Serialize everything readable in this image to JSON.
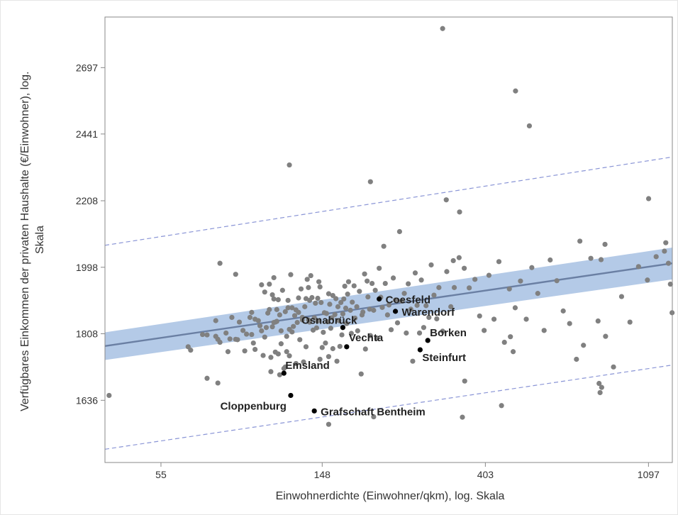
{
  "chart_data": {
    "type": "scatter",
    "xlabel": "Einwohnerdichte (Einwohner/qkm), log. Skala",
    "ylabel_lines": [
      "Verfügbares Einkommen der privaten Haushalte (€/Einwohner), log.",
      "Skala"
    ],
    "x_scale": "log",
    "y_scale": "log",
    "xlim": [
      39,
      1270
    ],
    "ylim": [
      1490,
      2910
    ],
    "x_ticks": [
      55,
      148,
      403,
      1097
    ],
    "y_ticks": [
      1636,
      1808,
      1998,
      2208,
      2441,
      2697
    ],
    "grid": false,
    "legend": "none",
    "colors": {
      "points": "#808080",
      "highlight": "#000000",
      "regression_line": "#6a7fa3",
      "confidence_band": "#a7c1e3",
      "prediction_limits": "#8a95d6",
      "frame": "#888888"
    },
    "regression": {
      "line": [
        [
          39,
          1775
        ],
        [
          1270,
          2010
        ]
      ],
      "ci_upper": [
        [
          39,
          1812
        ],
        [
          1270,
          2058
        ]
      ],
      "ci_lower": [
        [
          39,
          1738
        ],
        [
          1270,
          1962
        ]
      ],
      "pi_upper": [
        [
          39,
          2065
        ],
        [
          1270,
          2358
        ]
      ],
      "pi_lower": [
        [
          39,
          1520
        ],
        [
          1270,
          1725
        ]
      ]
    },
    "highlighted": [
      {
        "label": "Coesfeld",
        "x": 210,
        "y": 1905
      },
      {
        "label": "Warendorf",
        "x": 232,
        "y": 1870
      },
      {
        "label": "Osnabrück",
        "x": 168,
        "y": 1825
      },
      {
        "label": "Vechta",
        "x": 172,
        "y": 1773
      },
      {
        "label": "Borken",
        "x": 283,
        "y": 1790
      },
      {
        "label": "Steinfurt",
        "x": 270,
        "y": 1765
      },
      {
        "label": "Emsland",
        "x": 117,
        "y": 1704
      },
      {
        "label": "Cloppenburg",
        "x": 122,
        "y": 1648
      },
      {
        "label": "Grafschaft Bentheim",
        "x": 141,
        "y": 1610
      }
    ],
    "points": [
      [
        40,
        1648
      ],
      [
        65,
        1773
      ],
      [
        66,
        1764
      ],
      [
        71,
        1806
      ],
      [
        73,
        1805
      ],
      [
        73,
        1691
      ],
      [
        77,
        1844
      ],
      [
        77,
        1801
      ],
      [
        78,
        1793
      ],
      [
        78,
        1679
      ],
      [
        79,
        1785
      ],
      [
        79,
        2010
      ],
      [
        82,
        1810
      ],
      [
        83,
        1760
      ],
      [
        84,
        1794
      ],
      [
        85,
        1853
      ],
      [
        87,
        1793
      ],
      [
        87,
        1977
      ],
      [
        88,
        1792
      ],
      [
        89,
        1840
      ],
      [
        91,
        1817
      ],
      [
        92,
        1762
      ],
      [
        93,
        1807
      ],
      [
        95,
        1853
      ],
      [
        96,
        1867
      ],
      [
        96,
        1806
      ],
      [
        97,
        1783
      ],
      [
        98,
        1848
      ],
      [
        98,
        1766
      ],
      [
        100,
        1844
      ],
      [
        101,
        1830
      ],
      [
        102,
        1946
      ],
      [
        102,
        1816
      ],
      [
        103,
        1750
      ],
      [
        104,
        1799
      ],
      [
        104,
        1925
      ],
      [
        105,
        1825
      ],
      [
        106,
        1865
      ],
      [
        107,
        1875
      ],
      [
        107,
        1948
      ],
      [
        108,
        1745
      ],
      [
        108,
        1708
      ],
      [
        109,
        1917
      ],
      [
        109,
        1827
      ],
      [
        110,
        1839
      ],
      [
        110,
        1967
      ],
      [
        110,
        1905
      ],
      [
        111,
        1840
      ],
      [
        111,
        1759
      ],
      [
        112,
        1842
      ],
      [
        112,
        1875
      ],
      [
        113,
        1903
      ],
      [
        113,
        1754
      ],
      [
        114,
        1860
      ],
      [
        114,
        1700
      ],
      [
        115,
        1816
      ],
      [
        115,
        1781
      ],
      [
        116,
        1930
      ],
      [
        117,
        1716
      ],
      [
        118,
        1720
      ],
      [
        118,
        1869
      ],
      [
        119,
        1760
      ],
      [
        119,
        1801
      ],
      [
        120,
        1901
      ],
      [
        120,
        1880
      ],
      [
        121,
        1749
      ],
      [
        121,
        1820
      ],
      [
        122,
        1976
      ],
      [
        123,
        1880
      ],
      [
        123,
        1813
      ],
      [
        124,
        1828
      ],
      [
        125,
        1858
      ],
      [
        126,
        1729
      ],
      [
        126,
        1874
      ],
      [
        127,
        1839
      ],
      [
        128,
        1867
      ],
      [
        128,
        1908
      ],
      [
        129,
        1792
      ],
      [
        130,
        1934
      ],
      [
        131,
        1853
      ],
      [
        131,
        1846
      ],
      [
        132,
        1733
      ],
      [
        133,
        1883
      ],
      [
        134,
        1906
      ],
      [
        134,
        1773
      ],
      [
        135,
        1962
      ],
      [
        136,
        1938
      ],
      [
        136,
        1846
      ],
      [
        137,
        1840
      ],
      [
        137,
        1901
      ],
      [
        138,
        1973
      ],
      [
        139,
        1909
      ],
      [
        140,
        1818
      ],
      [
        141,
        1852
      ],
      [
        142,
        1893
      ],
      [
        143,
        1824
      ],
      [
        144,
        1843
      ],
      [
        144,
        1907
      ],
      [
        145,
        1955
      ],
      [
        146,
        1940
      ],
      [
        146,
        1740
      ],
      [
        147,
        1895
      ],
      [
        148,
        1771
      ],
      [
        149,
        1812
      ],
      [
        150,
        1866
      ],
      [
        151,
        1783
      ],
      [
        152,
        1864
      ],
      [
        153,
        1841
      ],
      [
        154,
        1920
      ],
      [
        154,
        1747
      ],
      [
        155,
        1890
      ],
      [
        156,
        1823
      ],
      [
        157,
        1852
      ],
      [
        158,
        1915
      ],
      [
        158,
        1768
      ],
      [
        160,
        1861
      ],
      [
        161,
        1906
      ],
      [
        162,
        1735
      ],
      [
        163,
        1883
      ],
      [
        164,
        1844
      ],
      [
        165,
        1774
      ],
      [
        166,
        1895
      ],
      [
        167,
        1805
      ],
      [
        168,
        1863
      ],
      [
        169,
        1905
      ],
      [
        170,
        1942
      ],
      [
        171,
        1879
      ],
      [
        172,
        1836
      ],
      [
        173,
        1919
      ],
      [
        174,
        1955
      ],
      [
        176,
        1873
      ],
      [
        177,
        1809
      ],
      [
        178,
        1896
      ],
      [
        180,
        1943
      ],
      [
        181,
        1851
      ],
      [
        183,
        1883
      ],
      [
        184,
        1816
      ],
      [
        186,
        1927
      ],
      [
        188,
        1702
      ],
      [
        189,
        1860
      ],
      [
        190,
        1868
      ],
      [
        192,
        1978
      ],
      [
        193,
        1767
      ],
      [
        195,
        1957
      ],
      [
        196,
        1911
      ],
      [
        198,
        1876
      ],
      [
        199,
        1803
      ],
      [
        201,
        1950
      ],
      [
        203,
        1873
      ],
      [
        205,
        1930
      ],
      [
        207,
        1796
      ],
      [
        210,
        1995
      ],
      [
        212,
        1910
      ],
      [
        214,
        1881
      ],
      [
        216,
        2062
      ],
      [
        218,
        1950
      ],
      [
        221,
        1860
      ],
      [
        223,
        1888
      ],
      [
        226,
        1819
      ],
      [
        229,
        1966
      ],
      [
        232,
        1902
      ],
      [
        235,
        1838
      ],
      [
        238,
        2108
      ],
      [
        241,
        1899
      ],
      [
        245,
        1921
      ],
      [
        248,
        1810
      ],
      [
        251,
        1949
      ],
      [
        255,
        1876
      ],
      [
        258,
        1735
      ],
      [
        262,
        1981
      ],
      [
        265,
        1887
      ],
      [
        269,
        1810
      ],
      [
        272,
        1960
      ],
      [
        276,
        1825
      ],
      [
        280,
        1886
      ],
      [
        285,
        1853
      ],
      [
        289,
        2005
      ],
      [
        294,
        1916
      ],
      [
        299,
        1849
      ],
      [
        303,
        1938
      ],
      [
        310,
        1815
      ],
      [
        318,
        1985
      ],
      [
        326,
        1883
      ],
      [
        333,
        1938
      ],
      [
        343,
        2027
      ],
      [
        354,
        1995
      ],
      [
        365,
        1937
      ],
      [
        378,
        1962
      ],
      [
        389,
        1857
      ],
      [
        400,
        1817
      ],
      [
        412,
        1974
      ],
      [
        425,
        1848
      ],
      [
        438,
        2015
      ],
      [
        453,
        1785
      ],
      [
        467,
        1934
      ],
      [
        484,
        1880
      ],
      [
        500,
        1957
      ],
      [
        518,
        1848
      ],
      [
        536,
        1997
      ],
      [
        556,
        1921
      ],
      [
        578,
        1817
      ],
      [
        600,
        2020
      ],
      [
        625,
        1958
      ],
      [
        650,
        1871
      ],
      [
        676,
        1836
      ],
      [
        705,
        1740
      ],
      [
        736,
        1777
      ],
      [
        770,
        2025
      ],
      [
        805,
        1843
      ],
      [
        843,
        1801
      ],
      [
        885,
        1720
      ],
      [
        930,
        1912
      ],
      [
        979,
        1840
      ],
      [
        1032,
        2000
      ],
      [
        1090,
        1960
      ],
      [
        1150,
        2030
      ],
      [
        1210,
        2047
      ],
      [
        1240,
        2010
      ],
      [
        1255,
        1948
      ],
      [
        1268,
        1866
      ],
      [
        121,
        2330
      ],
      [
        199,
        2272
      ],
      [
        310,
        2860
      ],
      [
        317,
        2211
      ],
      [
        331,
        2018
      ],
      [
        344,
        2171
      ],
      [
        485,
        2604
      ],
      [
        528,
        2471
      ],
      [
        720,
        2078
      ],
      [
        1098,
        2215
      ],
      [
        1220,
        2073
      ],
      [
        154,
        1578
      ],
      [
        203,
        1596
      ],
      [
        350,
        1595
      ],
      [
        355,
        1684
      ],
      [
        445,
        1623
      ],
      [
        470,
        1800
      ],
      [
        478,
        1760
      ],
      [
        810,
        1678
      ],
      [
        823,
        1668
      ],
      [
        815,
        1655
      ],
      [
        840,
        2068
      ],
      [
        820,
        2021
      ]
    ]
  }
}
